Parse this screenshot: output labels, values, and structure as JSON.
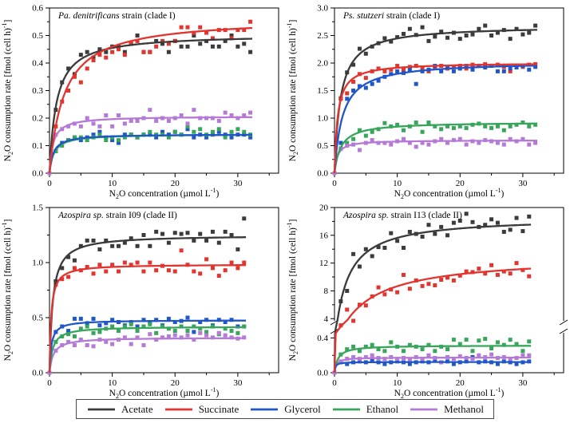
{
  "legend": {
    "items": [
      {
        "label": "Acetate",
        "color": "#3b3b3b"
      },
      {
        "label": "Succinate",
        "color": "#e23530"
      },
      {
        "label": "Glycerol",
        "color": "#2156c8"
      },
      {
        "label": "Ethanol",
        "color": "#37a65a"
      },
      {
        "label": "Methanol",
        "color": "#b47ad6"
      }
    ]
  },
  "axis_labels": {
    "x_parts": [
      {
        "t": "N"
      },
      {
        "t": "2",
        "s": "sub"
      },
      {
        "t": "O concentration (µmol L"
      },
      {
        "t": "-1",
        "s": "sup"
      },
      {
        "t": ")"
      }
    ],
    "y_parts": [
      {
        "t": "N"
      },
      {
        "t": "2",
        "s": "sub"
      },
      {
        "t": "O consumption rate [fmol (cell h)"
      },
      {
        "t": "-1",
        "s": "sup"
      },
      {
        "t": "]"
      }
    ]
  },
  "chart_data": [
    {
      "type": "scatter",
      "title": {
        "italic": "Pa. denitrificans",
        "rest": " strain (clade I)"
      },
      "xlim": [
        0,
        36.5
      ],
      "ylim": [
        0,
        0.6
      ],
      "x_ticks": [
        0,
        10,
        20,
        30
      ],
      "x_minor": [
        5,
        15,
        25,
        35
      ],
      "y_ticks": [
        0,
        0.1,
        0.2,
        0.3,
        0.4,
        0.5,
        0.6
      ],
      "y_minor": [
        0.05,
        0.15,
        0.25,
        0.35,
        0.45,
        0.55
      ],
      "y_decimals": 1,
      "x_end": 32,
      "series": [
        {
          "name": "Acetate",
          "color": "#3b3b3b",
          "fit": {
            "vmax": 0.505,
            "km": 1.1
          },
          "points_y": [
            0,
            0.23,
            0.33,
            0.38,
            0.36,
            0.43,
            0.44,
            0.42,
            0.45,
            0.44,
            0.46,
            0.46,
            0.44,
            0.47,
            0.5,
            0.44,
            0.44,
            0.48,
            0.47,
            0.44,
            0.48,
            0.46,
            0.46,
            0.5,
            0.47,
            0.48,
            0.46,
            0.46,
            0.48,
            0.5,
            0.46,
            0.47,
            0.44
          ]
        },
        {
          "name": "Succinate",
          "color": "#e23530",
          "fit": {
            "vmax": 0.565,
            "km": 2.3
          },
          "points_y": [
            0,
            0.17,
            0.26,
            0.3,
            0.35,
            0.33,
            0.38,
            0.41,
            0.43,
            0.42,
            0.44,
            0.45,
            0.43,
            0.47,
            0.48,
            0.44,
            0.44,
            0.46,
            0.48,
            0.47,
            0.48,
            0.53,
            0.53,
            0.51,
            0.53,
            0.51,
            0.49,
            0.52,
            0.52,
            0.49,
            0.52,
            0.52,
            0.55
          ]
        },
        {
          "name": "Glycerol",
          "color": "#2156c8",
          "fit": {
            "vmax": 0.142,
            "km": 0.6
          },
          "points_y": [
            0,
            0.08,
            0.11,
            0.12,
            0.13,
            0.12,
            0.13,
            0.14,
            0.15,
            0.13,
            0.12,
            0.11,
            0.14,
            0.14,
            0.13,
            0.14,
            0.14,
            0.13,
            0.15,
            0.14,
            0.15,
            0.14,
            0.16,
            0.13,
            0.14,
            0.13,
            0.14,
            0.15,
            0.14,
            0.13,
            0.14,
            0.14,
            0.13
          ]
        },
        {
          "name": "Ethanol",
          "color": "#37a65a",
          "fit": {
            "vmax": 0.142,
            "km": 0.7
          },
          "points_y": [
            0,
            0.08,
            0.1,
            0.12,
            0.13,
            0.13,
            0.12,
            0.13,
            0.14,
            0.12,
            0.13,
            0.12,
            0.13,
            0.14,
            0.13,
            0.14,
            0.15,
            0.14,
            0.14,
            0.13,
            0.15,
            0.14,
            0.17,
            0.15,
            0.16,
            0.14,
            0.15,
            0.16,
            0.13,
            0.15,
            0.16,
            0.15,
            0.14
          ]
        },
        {
          "name": "Methanol",
          "color": "#b47ad6",
          "fit": {
            "vmax": 0.207,
            "km": 0.55
          },
          "points_y": [
            0,
            0.14,
            0.16,
            0.17,
            0.18,
            0.17,
            0.2,
            0.18,
            0.17,
            0.21,
            0.17,
            0.21,
            0.18,
            0.19,
            0.19,
            0.2,
            0.23,
            0.19,
            0.2,
            0.19,
            0.2,
            0.21,
            0.18,
            0.23,
            0.2,
            0.2,
            0.2,
            0.19,
            0.22,
            0.21,
            0.2,
            0.21,
            0.22
          ]
        }
      ]
    },
    {
      "type": "scatter",
      "title": {
        "italic": "Ps. stutzeri",
        "rest": " strain (clade I)"
      },
      "xlim": [
        0,
        36.5
      ],
      "ylim": [
        0,
        3.0
      ],
      "x_ticks": [
        0,
        10,
        20,
        30
      ],
      "x_minor": [
        5,
        15,
        25,
        35
      ],
      "y_ticks": [
        0,
        0.5,
        1.0,
        1.5,
        2.0,
        2.5,
        3.0
      ],
      "y_minor": [
        0.25,
        0.75,
        1.25,
        1.75,
        2.25,
        2.75
      ],
      "y_decimals": 1,
      "x_end": 32,
      "series": [
        {
          "name": "Acetate",
          "color": "#3b3b3b",
          "fit": {
            "vmax": 2.68,
            "km": 0.95
          },
          "points_y": [
            0,
            1.36,
            1.83,
            1.97,
            2.26,
            2.17,
            2.3,
            2.36,
            2.45,
            2.39,
            2.47,
            2.53,
            2.62,
            2.51,
            2.65,
            2.4,
            2.48,
            2.57,
            2.46,
            2.55,
            2.44,
            2.5,
            2.52,
            2.62,
            2.68,
            2.5,
            2.55,
            2.6,
            2.44,
            2.62,
            2.52,
            2.55,
            2.68
          ]
        },
        {
          "name": "Succinate",
          "color": "#e23530",
          "fit": {
            "vmax": 2.01,
            "km": 0.5
          },
          "points_y": [
            0,
            1.35,
            1.45,
            1.66,
            1.8,
            1.73,
            1.85,
            1.9,
            1.85,
            1.88,
            1.95,
            1.88,
            1.93,
            1.95,
            1.9,
            1.85,
            1.93,
            1.95,
            1.9,
            1.93,
            1.95,
            1.9,
            1.97,
            1.95,
            1.98,
            1.95,
            1.97,
            1.93,
            1.85,
            1.95,
            1.93,
            1.97,
            1.98
          ]
        },
        {
          "name": "Glycerol",
          "color": "#2156c8",
          "fit": {
            "vmax": 2.03,
            "km": 1.25
          },
          "points_y": [
            0,
            0.55,
            1.35,
            1.5,
            1.58,
            1.55,
            1.62,
            1.68,
            1.75,
            1.8,
            1.85,
            1.82,
            1.88,
            1.62,
            1.85,
            1.88,
            1.95,
            1.85,
            1.93,
            1.85,
            1.9,
            1.95,
            1.88,
            1.95,
            1.92,
            1.95,
            1.85,
            1.85,
            1.9,
            1.92,
            1.95,
            1.88,
            1.93
          ]
        },
        {
          "name": "Ethanol",
          "color": "#37a65a",
          "fit": {
            "vmax": 0.93,
            "km": 1.0
          },
          "points_y": [
            0,
            0.45,
            0.55,
            0.62,
            0.78,
            0.68,
            0.75,
            0.8,
            0.91,
            0.85,
            0.88,
            0.78,
            0.85,
            0.92,
            0.75,
            0.92,
            0.85,
            0.8,
            0.85,
            0.82,
            0.85,
            0.82,
            0.88,
            0.9,
            0.85,
            0.82,
            0.85,
            0.78,
            0.85,
            0.88,
            0.92,
            0.85,
            0.88
          ]
        },
        {
          "name": "Methanol",
          "color": "#b47ad6",
          "fit": {
            "vmax": 0.6,
            "km": 0.45
          },
          "points_y": [
            0,
            0.44,
            0.5,
            0.52,
            0.42,
            0.55,
            0.6,
            0.55,
            0.55,
            0.52,
            0.58,
            0.62,
            0.55,
            0.48,
            0.55,
            0.52,
            0.58,
            0.62,
            0.55,
            0.6,
            0.62,
            0.52,
            0.58,
            0.55,
            0.6,
            0.58,
            0.55,
            0.52,
            0.62,
            0.58,
            0.62,
            0.52,
            0.55
          ]
        }
      ]
    },
    {
      "type": "scatter",
      "title": {
        "italic": "Azospira sp.",
        "rest": " strain I09 (clade II)"
      },
      "xlim": [
        0,
        36.5
      ],
      "ylim": [
        0,
        1.5
      ],
      "x_ticks": [
        0,
        10,
        20,
        30
      ],
      "x_minor": [
        5,
        15,
        25,
        35
      ],
      "y_ticks": [
        0,
        0.5,
        1.0,
        1.5
      ],
      "y_minor": [
        0.25,
        0.75,
        1.25
      ],
      "y_decimals": 1,
      "x_end": 31,
      "series": [
        {
          "name": "Acetate",
          "color": "#3b3b3b",
          "fit": {
            "vmax": 1.25,
            "km": 0.5
          },
          "points_y": [
            0,
            0.83,
            0.95,
            1.05,
            1.02,
            1.15,
            1.2,
            1.2,
            1.12,
            1.2,
            1.15,
            1.15,
            1.18,
            1.22,
            1.15,
            1.25,
            1.15,
            1.28,
            1.26,
            1.18,
            1.27,
            1.26,
            1.27,
            1.2,
            1.26,
            1.2,
            1.28,
            1.18,
            1.28,
            1.25,
            1.12,
            1.4
          ]
        },
        {
          "name": "Succinate",
          "color": "#e23530",
          "fit": {
            "vmax": 0.985,
            "km": 0.26
          },
          "points_y": [
            0,
            0.8,
            0.85,
            0.87,
            0.95,
            0.93,
            0.96,
            0.9,
            0.98,
            0.92,
            0.98,
            0.92,
            1.0,
            0.98,
            1.0,
            0.92,
            1.0,
            0.93,
            0.97,
            0.93,
            0.92,
            1.11,
            0.98,
            0.92,
            0.9,
            1.03,
            0.95,
            0.88,
            0.93,
            1.0,
            0.95,
            1.0
          ]
        },
        {
          "name": "Glycerol",
          "color": "#2156c8",
          "fit": {
            "vmax": 0.478,
            "km": 0.3
          },
          "points_y": [
            0,
            0.37,
            0.42,
            0.38,
            0.49,
            0.49,
            0.45,
            0.49,
            0.43,
            0.45,
            0.48,
            0.46,
            0.43,
            0.46,
            0.42,
            0.48,
            0.46,
            0.48,
            0.43,
            0.49,
            0.46,
            0.47,
            0.5,
            0.37,
            0.46,
            0.48,
            0.43,
            0.48,
            0.46,
            0.48,
            0.42,
            0.42
          ]
        },
        {
          "name": "Ethanol",
          "color": "#37a65a",
          "fit": {
            "vmax": 0.42,
            "km": 0.5
          },
          "points_y": [
            0,
            0.28,
            0.33,
            0.35,
            0.33,
            0.4,
            0.42,
            0.36,
            0.37,
            0.4,
            0.42,
            0.38,
            0.42,
            0.44,
            0.38,
            0.42,
            0.44,
            0.36,
            0.42,
            0.4,
            0.38,
            0.42,
            0.38,
            0.42,
            0.4,
            0.37,
            0.42,
            0.35,
            0.4,
            0.38,
            0.36,
            0.42
          ]
        },
        {
          "name": "Methanol",
          "color": "#b47ad6",
          "fit": {
            "vmax": 0.32,
            "km": 0.6
          },
          "points_y": [
            0,
            0.2,
            0.25,
            0.28,
            0.25,
            0.3,
            0.25,
            0.24,
            0.3,
            0.28,
            0.26,
            0.3,
            0.32,
            0.26,
            0.32,
            0.25,
            0.35,
            0.3,
            0.32,
            0.33,
            0.34,
            0.32,
            0.34,
            0.3,
            0.36,
            0.34,
            0.32,
            0.36,
            0.34,
            0.32,
            0.31,
            0.32
          ]
        }
      ]
    },
    {
      "type": "scatter",
      "title": {
        "italic": "Azospira sp.",
        "rest": " strain I13 (clade II)"
      },
      "xlim": [
        0,
        36.5
      ],
      "ylim": [
        0,
        20
      ],
      "x_ticks": [
        0,
        10,
        20,
        30
      ],
      "x_minor": [
        5,
        15,
        25,
        35
      ],
      "y_break": {
        "lower_max": 0.45,
        "upper_min": 3.8,
        "ymax": 20,
        "lower_ticks": [
          0,
          0.4
        ],
        "upper_ticks": [
          4,
          8,
          12,
          16,
          20
        ],
        "lower_minor": [
          0.2
        ],
        "upper_minor": [
          6,
          10,
          14,
          18
        ]
      },
      "y_decimals": 1,
      "x_end": 31,
      "series": [
        {
          "name": "Acetate",
          "color": "#3b3b3b",
          "fit": {
            "vmax": 18.6,
            "km": 1.9
          },
          "points_y": [
            0,
            6.5,
            8.0,
            13.3,
            11.5,
            14.0,
            13.0,
            14.3,
            14.2,
            16.3,
            15.2,
            14.2,
            16.5,
            16.2,
            15.8,
            17.5,
            16.2,
            17.2,
            16.0,
            17.8,
            18.1,
            19.1,
            17.9,
            17.2,
            17.5,
            18.3,
            17.8,
            16.5,
            16.8,
            18.5,
            16.6,
            18.7
          ]
        },
        {
          "name": "Succinate",
          "color": "#e23530",
          "fit": {
            "vmax": 13.0,
            "km": 5.0
          },
          "points_y": [
            0,
            2.5,
            5.3,
            3.6,
            6.0,
            5.9,
            7.2,
            8.5,
            7.5,
            8.2,
            7.8,
            10.3,
            8.3,
            9.5,
            8.7,
            9.0,
            8.8,
            9.6,
            9.9,
            9.5,
            10.2,
            10.8,
            10.7,
            11.2,
            10.5,
            11.7,
            10.3,
            10.8,
            10.5,
            12.0,
            11.0,
            10.1
          ]
        },
        {
          "name": "Glycerol",
          "color": "#2156c8",
          "fit": {
            "vmax": 0.124,
            "km": 0.15
          },
          "points_y": [
            0,
            0.12,
            0.1,
            0.12,
            0.13,
            0.12,
            0.14,
            0.12,
            0.1,
            0.12,
            0.13,
            0.12,
            0.1,
            0.12,
            0.13,
            0.12,
            0.14,
            0.12,
            0.13,
            0.1,
            0.12,
            0.13,
            0.18,
            0.12,
            0.13,
            0.12,
            0.1,
            0.13,
            0.12,
            0.1,
            0.12,
            0.13
          ]
        },
        {
          "name": "Ethanol",
          "color": "#37a65a",
          "fit": {
            "vmax": 0.315,
            "km": 0.55
          },
          "points_y": [
            0,
            0.21,
            0.27,
            0.3,
            0.25,
            0.3,
            0.32,
            0.27,
            0.25,
            0.35,
            0.3,
            0.25,
            0.32,
            0.3,
            0.27,
            0.32,
            0.25,
            0.3,
            0.27,
            0.38,
            0.33,
            0.38,
            0.25,
            0.37,
            0.39,
            0.28,
            0.35,
            0.32,
            0.38,
            0.33,
            0.25,
            0.36
          ]
        },
        {
          "name": "Methanol",
          "color": "#b47ad6",
          "fit": {
            "vmax": 0.176,
            "km": 0.3
          },
          "points_y": [
            0,
            0.13,
            0.16,
            0.18,
            0.16,
            0.18,
            0.2,
            0.17,
            0.16,
            0.18,
            0.16,
            0.17,
            0.15,
            0.18,
            0.16,
            0.2,
            0.17,
            0.12,
            0.18,
            0.16,
            0.19,
            0.17,
            0.16,
            0.2,
            0.18,
            0.21,
            0.17,
            0.18,
            0.16,
            0.17,
            0.2,
            0.2
          ]
        }
      ]
    }
  ]
}
